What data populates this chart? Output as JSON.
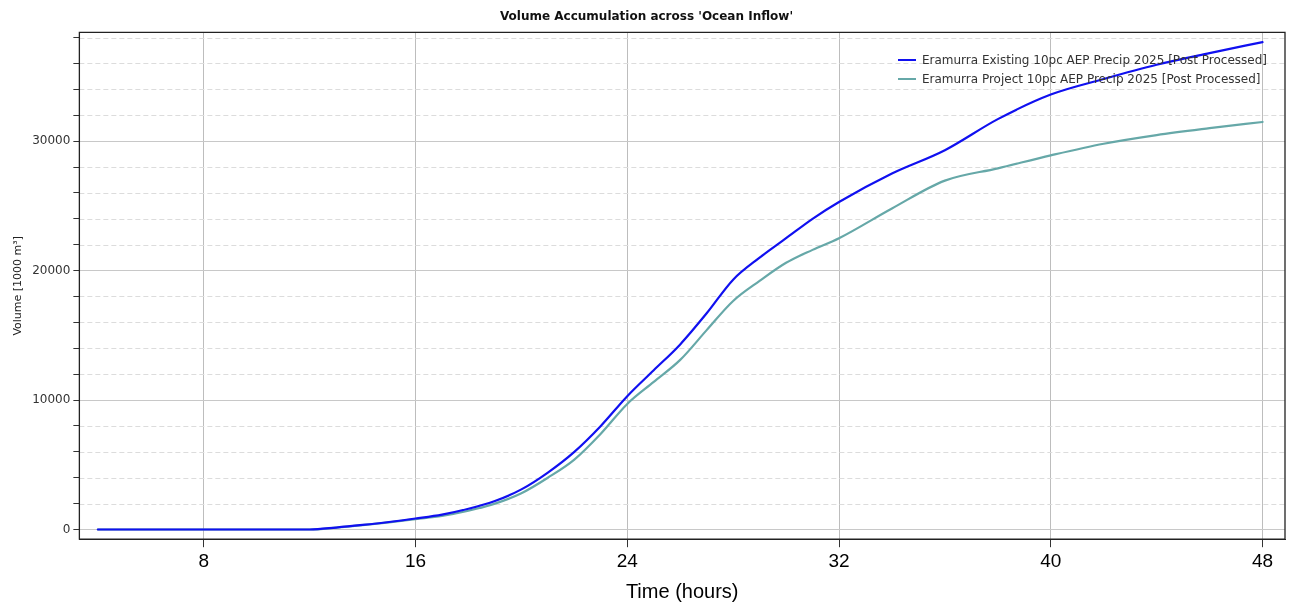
{
  "chart_data": {
    "type": "line",
    "title": "Volume Accumulation across 'Ocean Inflow'",
    "xlabel": "Time (hours)",
    "ylabel": "Volume [1000 m³]",
    "x": [
      4,
      6,
      8,
      10,
      12,
      13,
      14,
      15,
      16,
      17,
      18,
      19,
      20,
      21,
      22,
      23,
      24,
      25,
      26,
      27,
      28,
      29,
      30,
      31,
      32,
      34,
      36,
      38,
      40,
      42,
      44,
      46,
      48
    ],
    "series": [
      {
        "name": "Eramurra Existing 10pc AEP Precip 2025 [Post Processed]",
        "color": "#1010f0",
        "values": [
          0,
          0,
          0,
          0,
          0,
          150,
          350,
          580,
          850,
          1150,
          1600,
          2200,
          3100,
          4400,
          6000,
          8000,
          10300,
          12300,
          14300,
          16700,
          19300,
          21000,
          22500,
          24000,
          25300,
          27500,
          29300,
          31700,
          33600,
          34800,
          35900,
          36800,
          37650
        ]
      },
      {
        "name": "Eramurra Project 10pc AEP Precip 2025 [Post Processed]",
        "color": "#66a8a8",
        "values": [
          0,
          0,
          0,
          0,
          0,
          140,
          330,
          550,
          800,
          1050,
          1450,
          2000,
          2800,
          4000,
          5400,
          7400,
          9700,
          11400,
          13100,
          15400,
          17650,
          19200,
          20600,
          21600,
          22500,
          24800,
          26950,
          27900,
          28900,
          29800,
          30470,
          31000,
          31480
        ]
      }
    ],
    "xlim": [
      3.3,
      48.85
    ],
    "xticks": [
      8,
      16,
      24,
      32,
      40,
      48
    ],
    "ylim": [
      -750,
      38400
    ],
    "yticks": [
      0,
      {
        "value": 2000,
        "label": null
      },
      {
        "value": 4000,
        "label": null
      },
      {
        "value": 6000,
        "label": null
      },
      {
        "value": 8000,
        "label": null
      },
      10000,
      {
        "value": 12000,
        "label": null
      },
      {
        "value": 14000,
        "label": null
      },
      {
        "value": 16000,
        "label": null
      },
      {
        "value": 18000,
        "label": null
      },
      20000,
      {
        "value": 22000,
        "label": null
      },
      {
        "value": 24000,
        "label": null
      },
      {
        "value": 26000,
        "label": null
      },
      {
        "value": 28000,
        "label": null
      },
      30000,
      {
        "value": 32000,
        "label": null
      },
      {
        "value": 34000,
        "label": null
      },
      {
        "value": 36000,
        "label": null
      },
      {
        "value": 38000,
        "label": null
      }
    ],
    "grid": true,
    "legend": "top right",
    "marker": "none",
    "line_style": "solid"
  }
}
